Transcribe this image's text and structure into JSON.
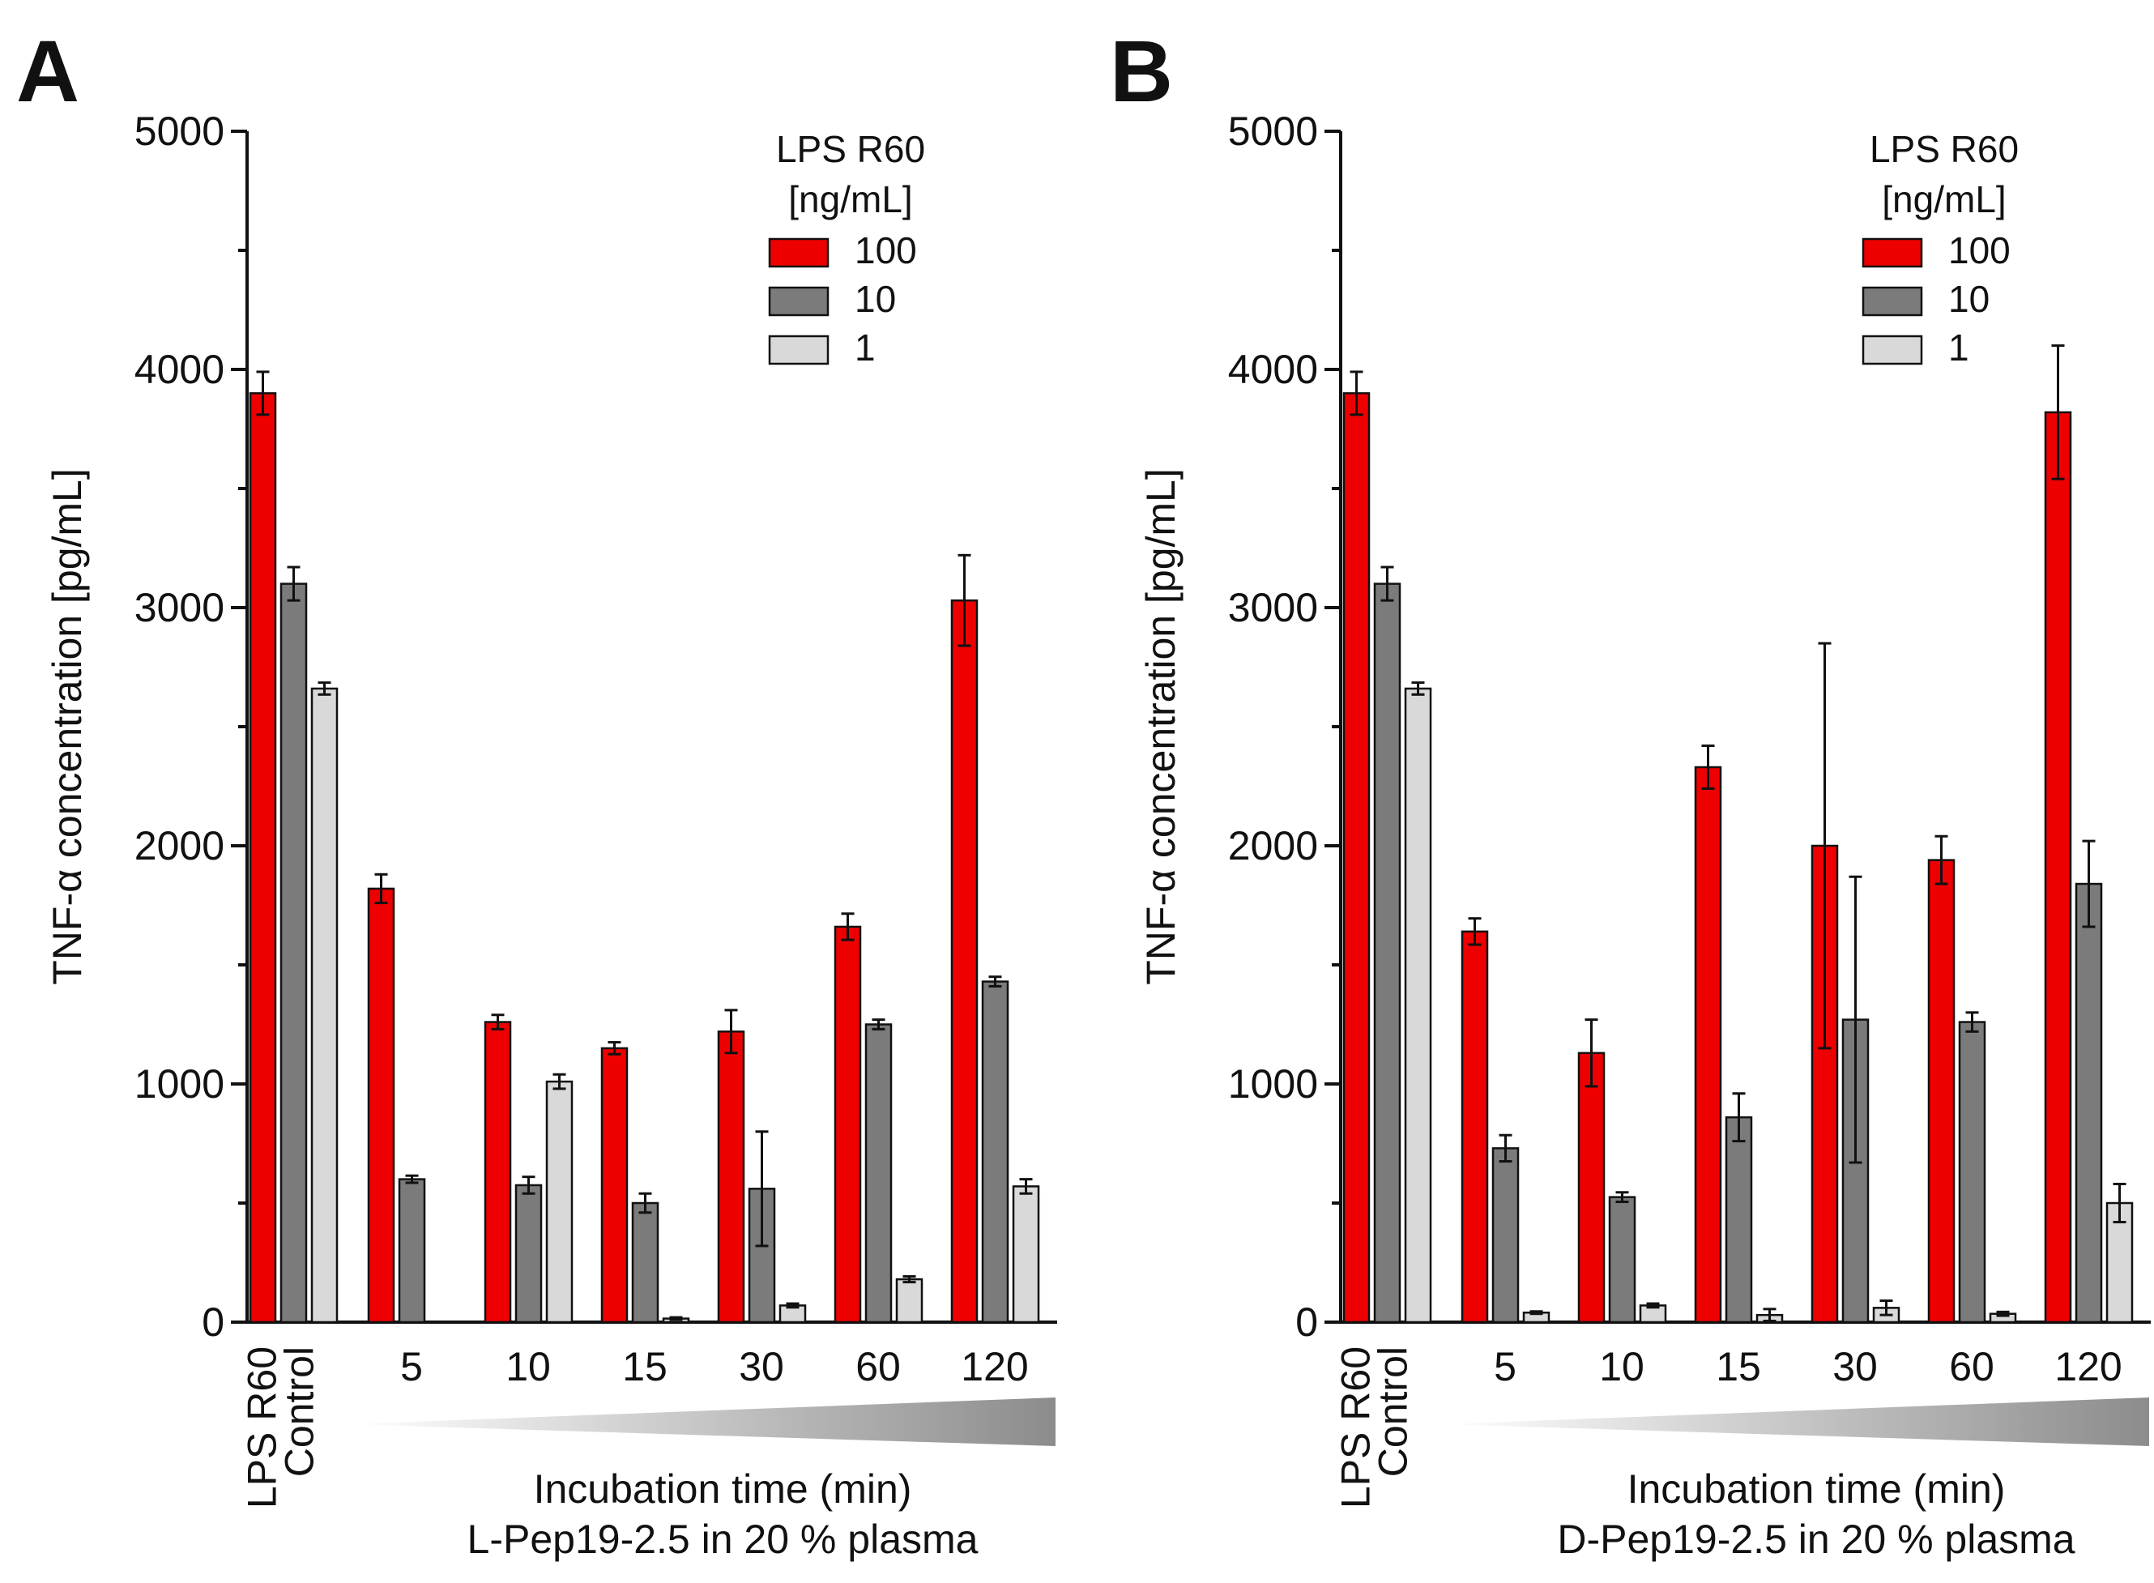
{
  "colors": {
    "100": "#ee0000",
    "10": "#7b7b7b",
    "1": "#d9d9d9"
  },
  "chart_data": [
    {
      "panel": "A",
      "type": "bar",
      "ylabel": "TNF-α concentration [pg/mL]",
      "ylim": [
        0,
        5000
      ],
      "yticks": [
        "0",
        "1000",
        "2000",
        "3000",
        "4000",
        "5000"
      ],
      "legend_title": [
        "LPS R60",
        "[ng/mL]"
      ],
      "legend_placement": "top-right",
      "series_labels": [
        "100",
        "10",
        "1"
      ],
      "control_labels": [
        "LPS R60",
        "Control"
      ],
      "categories": [
        "5",
        "10",
        "15",
        "30",
        "60",
        "120"
      ],
      "xlabel": [
        "Incubation time (min)",
        "L-Pep19-2.5 in 20 % plasma"
      ],
      "control_values": [
        3900,
        3100,
        2660
      ],
      "control_err": [
        90,
        70,
        25
      ],
      "series": [
        {
          "values": [
            1820,
            1260,
            1150,
            1220,
            1660,
            3030
          ],
          "err": [
            60,
            30,
            25,
            90,
            55,
            190
          ]
        },
        {
          "values": [
            600,
            575,
            500,
            560,
            1250,
            1430
          ],
          "err": [
            15,
            35,
            40,
            240,
            20,
            20
          ]
        },
        {
          "values": [
            0,
            1010,
            15,
            70,
            180,
            570
          ],
          "err": [
            0,
            30,
            5,
            8,
            12,
            30
          ]
        }
      ]
    },
    {
      "panel": "B",
      "type": "bar",
      "ylabel": "TNF-α concentration [pg/mL]",
      "ylim": [
        0,
        5000
      ],
      "yticks": [
        "0",
        "1000",
        "2000",
        "3000",
        "4000",
        "5000"
      ],
      "legend_title": [
        "LPS R60",
        "[ng/mL]"
      ],
      "legend_placement": "top-right",
      "series_labels": [
        "100",
        "10",
        "1"
      ],
      "control_labels": [
        "LPS R60",
        "Control"
      ],
      "categories": [
        "5",
        "10",
        "15",
        "30",
        "60",
        "120"
      ],
      "xlabel": [
        "Incubation time (min)",
        "D-Pep19-2.5 in 20 % plasma"
      ],
      "control_values": [
        3900,
        3100,
        2660
      ],
      "control_err": [
        90,
        70,
        25
      ],
      "series": [
        {
          "values": [
            1640,
            1130,
            2330,
            2000,
            1940,
            3820
          ],
          "err": [
            55,
            140,
            90,
            850,
            100,
            280
          ]
        },
        {
          "values": [
            730,
            525,
            860,
            1270,
            1260,
            1840
          ],
          "err": [
            55,
            20,
            100,
            600,
            40,
            180
          ]
        },
        {
          "values": [
            40,
            70,
            30,
            60,
            35,
            500
          ],
          "err": [
            5,
            8,
            25,
            30,
            8,
            80
          ]
        }
      ]
    }
  ]
}
